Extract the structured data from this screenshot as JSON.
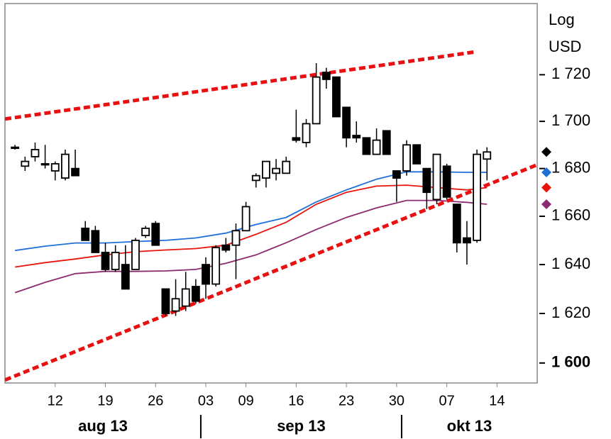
{
  "chart_data": {
    "type": "candlestick",
    "y_axis_label": [
      "Log",
      "USD"
    ],
    "log_scale": true,
    "ylim": [
      1592,
      1751
    ],
    "yticks": [
      {
        "value": 1600,
        "label": "1 600"
      },
      {
        "value": 1620,
        "label": "1 620"
      },
      {
        "value": 1640,
        "label": "1 640"
      },
      {
        "value": 1660,
        "label": "1 660"
      },
      {
        "value": 1680,
        "label": "1 680"
      },
      {
        "value": 1700,
        "label": "1 700"
      },
      {
        "value": 1720,
        "label": "1 720"
      }
    ],
    "xlim": [
      "2013-08-05",
      "2013-10-18"
    ],
    "xticks": [
      {
        "value": "2013-08-12",
        "label": "12"
      },
      {
        "value": "2013-08-19",
        "label": "19"
      },
      {
        "value": "2013-08-26",
        "label": "26"
      },
      {
        "value": "2013-09-03",
        "label": "03"
      },
      {
        "value": "2013-09-09",
        "label": "09"
      },
      {
        "value": "2013-09-16",
        "label": "16"
      },
      {
        "value": "2013-09-23",
        "label": "23"
      },
      {
        "value": "2013-09-30",
        "label": "30"
      },
      {
        "value": "2013-10-07",
        "label": "07"
      },
      {
        "value": "2013-10-14",
        "label": "14"
      }
    ],
    "month_labels": [
      "aug 13",
      "sep 13",
      "okt 13"
    ],
    "color": "#000000",
    "x": [
      "2013-08-06",
      "2013-08-07",
      "2013-08-08",
      "2013-08-09",
      "2013-08-12",
      "2013-08-13",
      "2013-08-14",
      "2013-08-15",
      "2013-08-16",
      "2013-08-19",
      "2013-08-20",
      "2013-08-21",
      "2013-08-22",
      "2013-08-23",
      "2013-08-26",
      "2013-08-27",
      "2013-08-28",
      "2013-08-29",
      "2013-08-30",
      "2013-09-03",
      "2013-09-04",
      "2013-09-05",
      "2013-09-06",
      "2013-09-09",
      "2013-09-10",
      "2013-09-11",
      "2013-09-12",
      "2013-09-13",
      "2013-09-16",
      "2013-09-17",
      "2013-09-18",
      "2013-09-19",
      "2013-09-20",
      "2013-09-23",
      "2013-09-24",
      "2013-09-25",
      "2013-09-26",
      "2013-09-27",
      "2013-09-30",
      "2013-10-01",
      "2013-10-02",
      "2013-10-03",
      "2013-10-04",
      "2013-10-07",
      "2013-10-08",
      "2013-10-09",
      "2013-10-10",
      "2013-10-11"
    ],
    "open": [
      1689,
      1681,
      1685,
      1682,
      1679,
      1676,
      1680,
      1655,
      1654,
      1645,
      1638,
      1640,
      1638,
      1652,
      1657,
      1630,
      1621,
      1623,
      1631,
      1640,
      1632,
      1648,
      1648,
      1654,
      1675,
      1676,
      1678,
      1678,
      1693,
      1691,
      1699,
      1721,
      1719,
      1706,
      1694,
      1693,
      1686,
      1696,
      1679,
      1679,
      1690,
      1680,
      1667,
      1681,
      1665,
      1651,
      1650,
      1684
    ],
    "high": [
      1690,
      1685,
      1691,
      1690,
      1683,
      1688,
      1688,
      1658,
      1656,
      1649,
      1648,
      1648,
      1651,
      1656,
      1658,
      1630,
      1634,
      1637,
      1634,
      1643,
      1648,
      1651,
      1657,
      1666,
      1678,
      1683,
      1684,
      1685,
      1705,
      1701,
      1725,
      1723,
      1719,
      1706,
      1700,
      1693,
      1697,
      1696,
      1679,
      1692,
      1690,
      1680,
      1686,
      1682,
      1665,
      1658,
      1688,
      1689
    ],
    "low": [
      1688,
      1679,
      1683,
      1680,
      1675,
      1675,
      1677,
      1650,
      1645,
      1637,
      1637,
      1630,
      1638,
      1651,
      1648,
      1619,
      1619,
      1621,
      1624,
      1626,
      1631,
      1645,
      1634,
      1654,
      1672,
      1672,
      1675,
      1678,
      1691,
      1689,
      1699,
      1714,
      1702,
      1689,
      1691,
      1686,
      1686,
      1686,
      1666,
      1677,
      1682,
      1663,
      1665,
      1667,
      1645,
      1640,
      1649,
      1675
    ],
    "close": [
      1689,
      1683,
      1688,
      1682,
      1682,
      1686,
      1677,
      1650,
      1645,
      1638,
      1645,
      1630,
      1650,
      1655,
      1648,
      1620,
      1626,
      1630,
      1625,
      1632,
      1647,
      1646,
      1654,
      1664,
      1677,
      1683,
      1680,
      1683,
      1692,
      1699,
      1719,
      1718,
      1702,
      1693,
      1693,
      1686,
      1692,
      1686,
      1676,
      1690,
      1682,
      1670,
      1686,
      1668,
      1649,
      1649,
      1686,
      1687
    ],
    "overlays": [
      {
        "color": "#1f6fd8",
        "style": "solid",
        "x": [
          "2013-08-06",
          "2013-08-09",
          "2013-08-14",
          "2013-08-19",
          "2013-08-22",
          "2013-08-27",
          "2013-08-30",
          "2013-09-05",
          "2013-09-10",
          "2013-09-13",
          "2013-09-18",
          "2013-09-23",
          "2013-09-26",
          "2013-10-01",
          "2013-10-04",
          "2013-10-09",
          "2013-10-11"
        ],
        "values": [
          1645.8,
          1647.6,
          1648.9,
          1648.9,
          1649.5,
          1650,
          1651,
          1653,
          1656.6,
          1659.5,
          1666,
          1671,
          1675.5,
          1678.6,
          1678.6,
          1678.4,
          1678.4
        ]
      },
      {
        "color": "#e8140c",
        "style": "solid",
        "x": [
          "2013-08-06",
          "2013-08-09",
          "2013-08-14",
          "2013-08-19",
          "2013-08-22",
          "2013-08-27",
          "2013-08-30",
          "2013-09-05",
          "2013-09-10",
          "2013-09-13",
          "2013-09-18",
          "2013-09-23",
          "2013-09-26",
          "2013-10-01",
          "2013-10-04",
          "2013-10-09",
          "2013-10-11"
        ],
        "values": [
          1639,
          1640.8,
          1642.3,
          1644,
          1645.3,
          1646,
          1646.6,
          1648,
          1652.5,
          1657.5,
          1665,
          1670,
          1672.6,
          1673,
          1672,
          1671,
          1672
        ]
      },
      {
        "color": "#8b2a6e",
        "style": "solid",
        "x": [
          "2013-08-06",
          "2013-08-09",
          "2013-08-14",
          "2013-08-19",
          "2013-08-22",
          "2013-08-27",
          "2013-08-30",
          "2013-09-05",
          "2013-09-10",
          "2013-09-13",
          "2013-09-18",
          "2013-09-23",
          "2013-09-26",
          "2013-10-01",
          "2013-10-04",
          "2013-10-09",
          "2013-10-11"
        ],
        "values": [
          1628.5,
          1632.7,
          1636.3,
          1637.2,
          1637.2,
          1637.4,
          1638,
          1640.5,
          1644,
          1649,
          1654.5,
          1659.5,
          1663.5,
          1666.6,
          1666.6,
          1665.8,
          1665
        ]
      },
      {
        "color": "#e81010",
        "style": "dashed",
        "x": [
          "2013-08-05",
          "2013-10-10"
        ],
        "values": [
          1701,
          1730
        ]
      },
      {
        "color": "#e81010",
        "style": "dashed",
        "x": [
          "2013-08-05",
          "2013-10-18"
        ],
        "values": [
          1593.2,
          1681.6
        ]
      }
    ]
  }
}
